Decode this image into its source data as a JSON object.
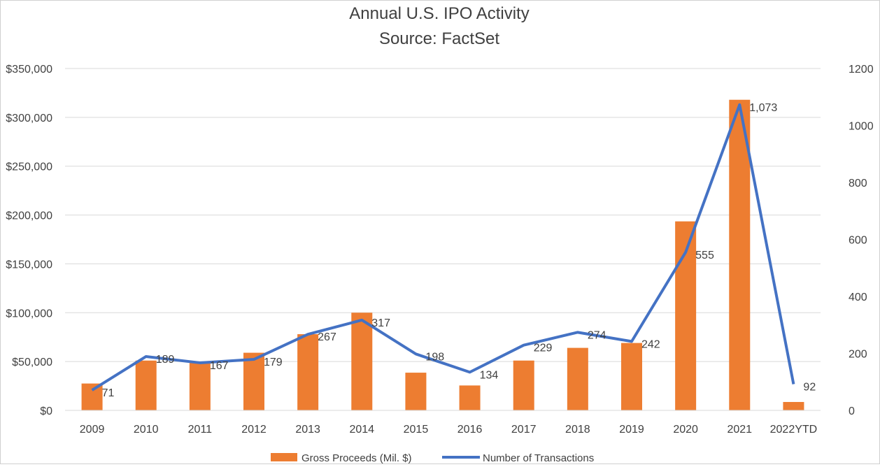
{
  "chart_data": {
    "type": "bar+line",
    "title": "Annual U.S. IPO Activity",
    "subtitle": "Source: FactSet",
    "categories": [
      "2009",
      "2010",
      "2011",
      "2012",
      "2013",
      "2014",
      "2015",
      "2016",
      "2017",
      "2018",
      "2019",
      "2020",
      "2021",
      "2022YTD"
    ],
    "series": [
      {
        "name": "Gross Proceeds (Mil. $)",
        "type": "bar",
        "axis": "left",
        "color": "#ED7D31",
        "values": [
          27500,
          51000,
          48600,
          59000,
          78000,
          100000,
          38600,
          25500,
          51000,
          64000,
          69000,
          193500,
          318000,
          8600
        ]
      },
      {
        "name": "Number of Transactions",
        "type": "line",
        "axis": "right",
        "color": "#4472C4",
        "values": [
          71,
          189,
          167,
          179,
          267,
          317,
          198,
          134,
          229,
          274,
          242,
          555,
          1073,
          92
        ],
        "labels": [
          "71",
          "189",
          "167",
          "179",
          "267",
          "317",
          "198",
          "134",
          "229",
          "274",
          "242",
          "555",
          "1,073",
          "92"
        ]
      }
    ],
    "left_axis": {
      "range": [
        0,
        350000
      ],
      "ticks": [
        "$0",
        "$50,000",
        "$100,000",
        "$150,000",
        "$200,000",
        "$250,000",
        "$300,000",
        "$350,000"
      ]
    },
    "right_axis": {
      "range": [
        0,
        1200
      ],
      "ticks": [
        "0",
        "200",
        "400",
        "600",
        "800",
        "1000",
        "1200"
      ]
    },
    "grid": true,
    "legend": "bottom"
  }
}
